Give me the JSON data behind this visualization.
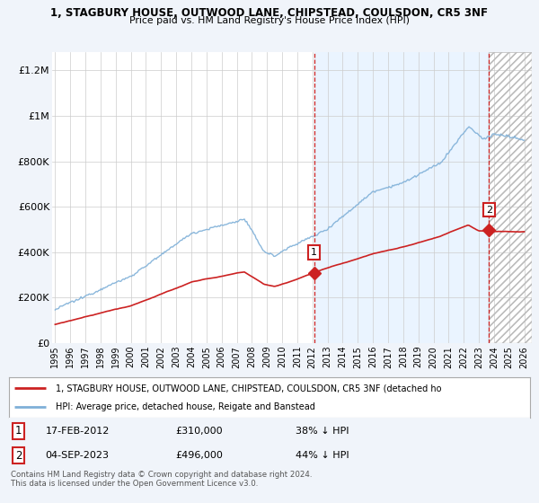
{
  "title_line1": "1, STAGBURY HOUSE, OUTWOOD LANE, CHIPSTEAD, COULSDON, CR5 3NF",
  "title_line2": "Price paid vs. HM Land Registry's House Price Index (HPI)",
  "ylabel_ticks": [
    "£0",
    "£200K",
    "£400K",
    "£600K",
    "£800K",
    "£1M",
    "£1.2M"
  ],
  "ytick_vals": [
    0,
    200000,
    400000,
    600000,
    800000,
    1000000,
    1200000
  ],
  "ylim": [
    0,
    1280000
  ],
  "xlim_start": 1994.8,
  "xlim_end": 2026.5,
  "hpi_color": "#7fb0d8",
  "price_color": "#cc2222",
  "marker1_x": 2012.12,
  "marker1_y": 310000,
  "marker2_x": 2023.67,
  "marker2_y": 496000,
  "legend_line1": "1, STAGBURY HOUSE, OUTWOOD LANE, CHIPSTEAD, COULSDON, CR5 3NF (detached ho",
  "legend_line2": "HPI: Average price, detached house, Reigate and Banstead",
  "table_row1": [
    "1",
    "17-FEB-2012",
    "£310,000",
    "38% ↓ HPI"
  ],
  "table_row2": [
    "2",
    "04-SEP-2023",
    "£496,000",
    "44% ↓ HPI"
  ],
  "footer": "Contains HM Land Registry data © Crown copyright and database right 2024.\nThis data is licensed under the Open Government Licence v3.0.",
  "background_color": "#f0f4fa",
  "plot_bg_color": "#ffffff",
  "shaded_bg_color": "#ddeeff",
  "grid_color": "#cccccc"
}
